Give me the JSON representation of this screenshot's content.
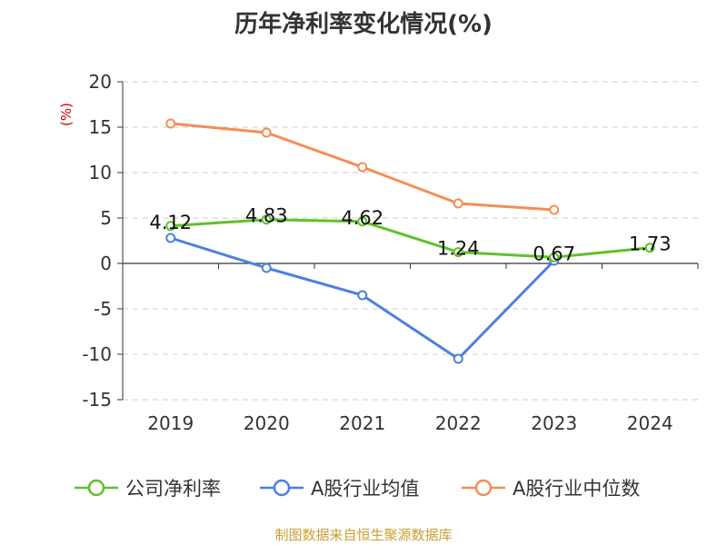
{
  "chart_data": {
    "type": "line",
    "title": "历年净利率变化情况(%)",
    "ylabel": "(%)",
    "xlabel": "",
    "categories": [
      "2019",
      "2020",
      "2021",
      "2022",
      "2023",
      "2024"
    ],
    "y_ticks": [
      20,
      15,
      10,
      5,
      0,
      -5,
      -10,
      -15
    ],
    "ylim": [
      -15,
      20
    ],
    "grid": true,
    "legend_position": "bottom",
    "series": [
      {
        "name": "公司净利率",
        "color": "#5ec229",
        "values": [
          4.12,
          4.83,
          4.62,
          1.24,
          0.67,
          1.73
        ],
        "data_labels": [
          "4.12",
          "4.83",
          "4.62",
          "1.24",
          "0.67",
          "1.73"
        ]
      },
      {
        "name": "A股行业均值",
        "color": "#4c80e0",
        "values": [
          2.8,
          -0.5,
          -3.5,
          -10.5,
          0.3,
          null
        ]
      },
      {
        "name": "A股行业中位数",
        "color": "#f58d55",
        "values": [
          15.4,
          14.4,
          10.6,
          6.6,
          5.9,
          null
        ]
      }
    ]
  },
  "source_note": "制图数据来自恒生聚源数据库"
}
